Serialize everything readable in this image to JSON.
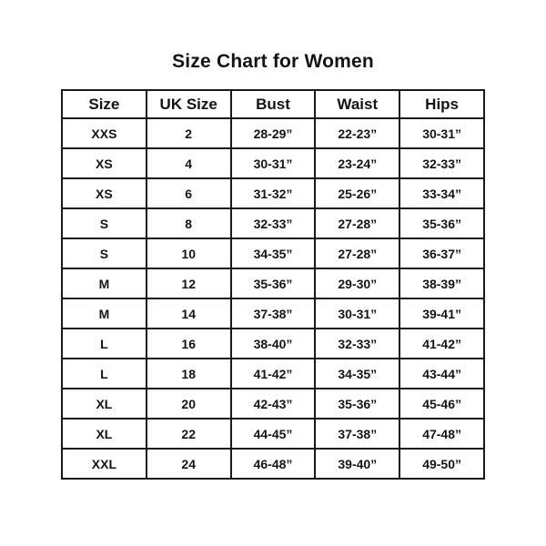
{
  "title": "Size Chart for Women",
  "colors": {
    "background": "#ffffff",
    "text": "#141414",
    "border": "#1a1a1a"
  },
  "chart_data": {
    "type": "table",
    "title": "Size Chart for Women",
    "columns": [
      "Size",
      "UK Size",
      "Bust",
      "Waist",
      "Hips"
    ],
    "rows": [
      [
        "XXS",
        "2",
        "28-29”",
        "22-23”",
        "30-31”"
      ],
      [
        "XS",
        "4",
        "30-31”",
        "23-24”",
        "32-33”"
      ],
      [
        "XS",
        "6",
        "31-32”",
        "25-26”",
        "33-34”"
      ],
      [
        "S",
        "8",
        "32-33”",
        "27-28”",
        "35-36”"
      ],
      [
        "S",
        "10",
        "34-35”",
        "27-28”",
        "36-37”"
      ],
      [
        "M",
        "12",
        "35-36”",
        "29-30”",
        "38-39”"
      ],
      [
        "M",
        "14",
        "37-38”",
        "30-31”",
        "39-41”"
      ],
      [
        "L",
        "16",
        "38-40”",
        "32-33”",
        "41-42”"
      ],
      [
        "L",
        "18",
        "41-42”",
        "34-35”",
        "43-44”"
      ],
      [
        "XL",
        "20",
        "42-43”",
        "35-36”",
        "45-46”"
      ],
      [
        "XL",
        "22",
        "44-45”",
        "37-38”",
        "47-48”"
      ],
      [
        "XXL",
        "24",
        "46-48”",
        "39-40”",
        "49-50”"
      ]
    ],
    "layout": {
      "legend": false,
      "grid": true,
      "header_row": true,
      "columns_count": 5,
      "data_rows_count": 12
    }
  }
}
